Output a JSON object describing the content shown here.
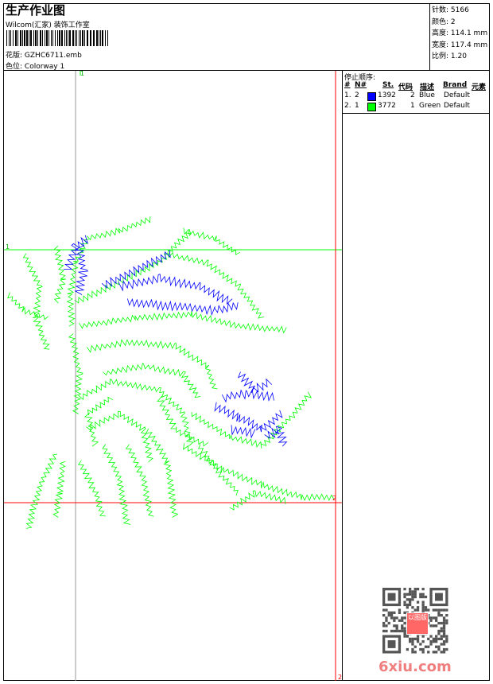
{
  "header": {
    "title": "生产作业图",
    "company": "Wilcom(汇家) 装饰工作室",
    "design_label": "花版:",
    "design_value": "GZHC6711.emb",
    "colorway_label": "色位:",
    "colorway_value": "Colorway 1"
  },
  "stats": {
    "stitches_label": "针数:",
    "stitches_value": "5166",
    "colors_label": "颜色:",
    "colors_value": "2",
    "height_label": "高度:",
    "height_value": "114.1 mm",
    "width_label": "宽度:",
    "width_value": "117.4 mm",
    "scale_label": "比例:",
    "scale_value": "1.20"
  },
  "stop_sequence": {
    "title": "停止顺序:",
    "columns": [
      "#",
      "N#",
      "St.",
      "代码",
      "描述",
      "Brand",
      "元素"
    ],
    "rows": [
      {
        "index": "1.",
        "needle": "2",
        "color": "#0000ff",
        "stitches": "1392",
        "code": "2",
        "desc": "Blue",
        "brand": "Default"
      },
      {
        "index": "2.",
        "needle": "1",
        "color": "#00ff00",
        "stitches": "3772",
        "code": "1",
        "desc": "Green",
        "brand": "Default"
      }
    ]
  },
  "guides": {
    "top_label": "1",
    "left_label": "1",
    "right_label": "2",
    "bottom_label": "2",
    "green": "#00ff00",
    "red": "#ff0000",
    "grey": "#999999"
  },
  "watermark": {
    "text": "6xiu.com",
    "stamp": "以图版"
  }
}
